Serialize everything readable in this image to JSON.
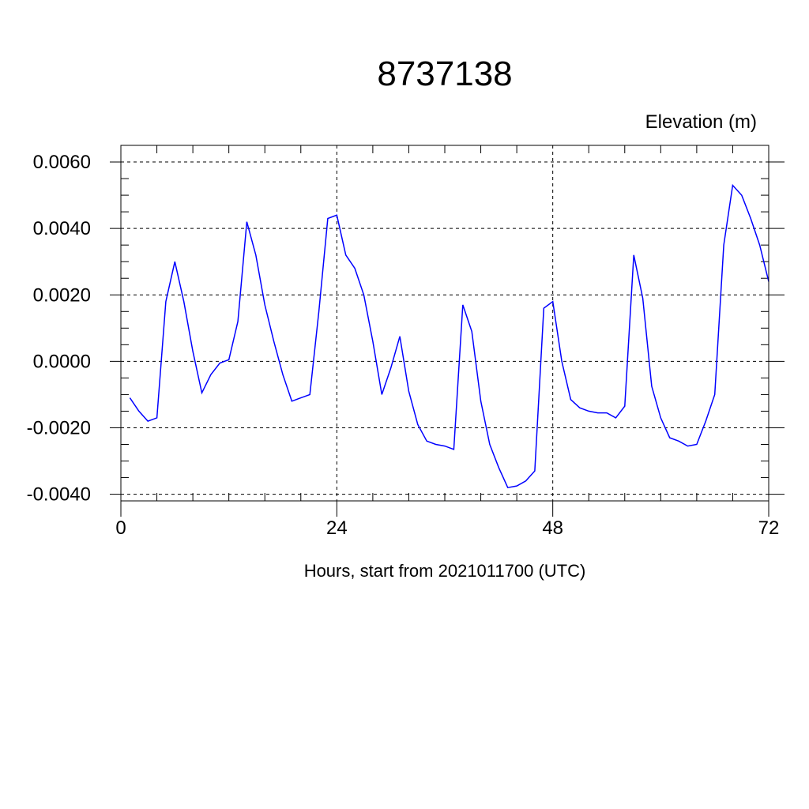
{
  "chart_data": {
    "type": "line",
    "title": "8737138",
    "ylabel": "Elevation (m)",
    "xlabel": "Hours, start from 2021011700 (UTC)",
    "xlim": [
      0,
      72
    ],
    "ylim": [
      -0.0042,
      0.0065
    ],
    "x_ticks": [
      0,
      24,
      48,
      72
    ],
    "x_tick_labels": [
      "0",
      "24",
      "48",
      "72"
    ],
    "y_ticks": [
      -0.004,
      -0.002,
      0.0,
      0.002,
      0.004,
      0.006
    ],
    "y_tick_labels": [
      "-0.0040",
      "-0.0020",
      "0.0000",
      "0.0020",
      "0.0040",
      "0.0060"
    ],
    "grid": true,
    "series": [
      {
        "color": "#0000ff",
        "x": [
          1,
          2,
          3,
          4,
          5,
          6,
          7,
          8,
          9,
          10,
          11,
          12,
          13,
          14,
          15,
          16,
          17,
          18,
          19,
          20,
          21,
          22,
          23,
          24,
          25,
          26,
          27,
          28,
          29,
          30,
          31,
          32,
          33,
          34,
          35,
          36,
          37,
          38,
          39,
          40,
          41,
          42,
          43,
          44,
          45,
          46,
          47,
          48,
          49,
          50,
          51,
          52,
          53,
          54,
          55,
          56,
          57,
          58,
          59,
          60,
          61,
          62,
          63,
          64,
          65,
          66,
          67,
          68,
          69,
          70,
          71,
          72
        ],
        "values": [
          -0.0011,
          -0.0015,
          -0.0018,
          -0.0017,
          0.0018,
          0.003,
          0.0018,
          0.0003,
          -0.00095,
          -0.0004,
          -5e-05,
          5e-05,
          0.0012,
          0.0042,
          0.0032,
          0.0017,
          0.0006,
          -0.0004,
          -0.0012,
          -0.0011,
          -0.001,
          0.0015,
          0.0043,
          0.0044,
          0.0032,
          0.0028,
          0.002,
          0.0006,
          -0.001,
          -0.0002,
          0.00075,
          -0.0009,
          -0.0019,
          -0.0024,
          -0.0025,
          -0.00255,
          -0.00265,
          0.0017,
          0.0009,
          -0.0012,
          -0.0025,
          -0.0032,
          -0.0038,
          -0.00375,
          -0.0036,
          -0.0033,
          0.0016,
          0.0018,
          0.0,
          -0.00115,
          -0.0014,
          -0.0015,
          -0.00155,
          -0.00155,
          -0.0017,
          -0.00135,
          0.0032,
          0.0019,
          -0.00075,
          -0.0017,
          -0.0023,
          -0.0024,
          -0.00255,
          -0.0025,
          -0.0018,
          -0.001,
          0.0035,
          0.0053,
          0.005,
          0.0043,
          0.0035,
          0.0024
        ]
      }
    ]
  }
}
